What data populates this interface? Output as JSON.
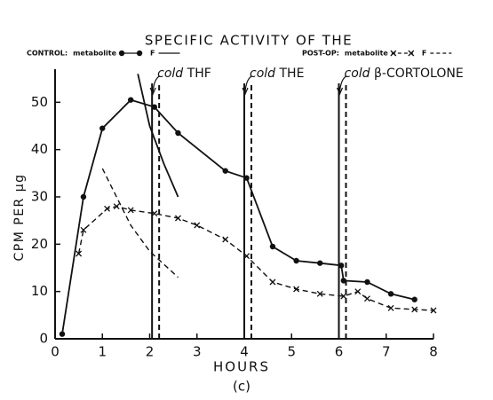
{
  "chart_data": {
    "type": "line",
    "title": "SPECIFIC ACTIVITY OF THE",
    "xlabel": "HOURS",
    "ylabel": "CPM PER µg",
    "caption": "(c)",
    "xlim": [
      0,
      8
    ],
    "ylim": [
      0,
      57
    ],
    "xticks": [
      0,
      1,
      2,
      3,
      4,
      5,
      6,
      7,
      8
    ],
    "yticks": [
      0,
      10,
      20,
      30,
      40,
      50
    ],
    "legend_groups": [
      "CONTROL:",
      "POST-OP:"
    ],
    "series": [
      {
        "group": 0,
        "name": "metabolite",
        "color": "#111",
        "marker": "o",
        "dashed": false,
        "x": [
          0.15,
          0.6,
          1.0,
          1.6,
          2.1,
          2.6,
          3.6,
          4.05,
          4.6,
          5.1,
          5.6,
          6.05,
          6.1,
          6.6,
          7.1,
          7.6
        ],
        "values": [
          1,
          30,
          44.5,
          50.5,
          49,
          43.5,
          35.5,
          34,
          19.5,
          16.5,
          16,
          15.5,
          12.3,
          12,
          9.5,
          8.3
        ]
      },
      {
        "group": 0,
        "name": "F",
        "color": "#111",
        "marker": "none",
        "dashed": false,
        "x": [
          1.75,
          2.0,
          2.3,
          2.6
        ],
        "values": [
          56,
          45,
          37,
          30
        ]
      },
      {
        "group": 1,
        "name": "metabolite",
        "color": "#111",
        "marker": "x",
        "dashed": true,
        "x": [
          0.5,
          0.6,
          1.1,
          1.3,
          1.6,
          2.1,
          2.6,
          3.0,
          3.6,
          4.05,
          4.6,
          5.1,
          5.6,
          6.1,
          6.4,
          6.6,
          7.1,
          7.6,
          8.0
        ],
        "values": [
          18,
          23,
          27.5,
          28,
          27.2,
          26.5,
          25.5,
          24,
          21,
          17.5,
          12,
          10.5,
          9.5,
          9,
          10,
          8.5,
          6.5,
          6.2,
          6
        ]
      },
      {
        "group": 1,
        "name": "F",
        "color": "#111",
        "marker": "none",
        "dashed": true,
        "x": [
          1.0,
          1.3,
          1.6,
          2.0,
          2.6
        ],
        "values": [
          36,
          30,
          24,
          18.5,
          13
        ]
      }
    ],
    "annotations": [
      {
        "prefix": "cold",
        "text": "THF",
        "x": 2.05,
        "x2": 2.2
      },
      {
        "prefix": "cold",
        "text": "THE",
        "x": 4.0,
        "x2": 4.15
      },
      {
        "prefix": "cold",
        "text": "β-CORTOLONE",
        "x": 6.0,
        "x2": 6.15
      }
    ]
  }
}
